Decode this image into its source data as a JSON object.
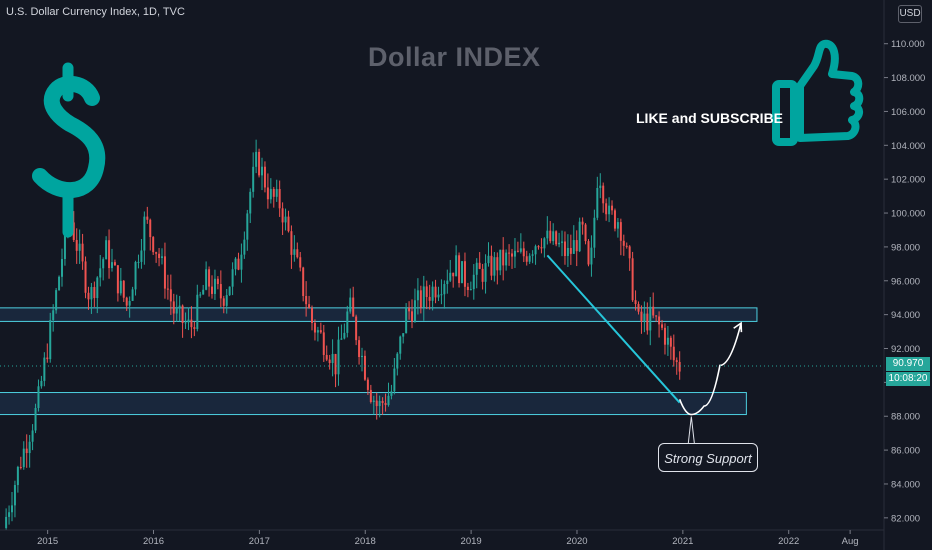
{
  "header": {
    "symbol_line": "U.S. Dollar Currency Index, 1D, TVC"
  },
  "currency_badge": "USD",
  "overlay": {
    "title": "Dollar INDEX",
    "promo": "LIKE and SUBSCRIBE",
    "dollar_sign": "$",
    "annotation": "Strong Support"
  },
  "price_tags": {
    "last_price": "90.970",
    "countdown": "10:08:20"
  },
  "colors": {
    "background": "#131722",
    "accent": "#00a59f",
    "zone": "#4dd0e1",
    "up": "#26a69a",
    "down": "#ef5350",
    "text": "#d1d4dc"
  },
  "icons": [
    "dollar-sign-icon",
    "thumbs-up-icon"
  ],
  "chart_data": {
    "type": "candlestick",
    "title": "Dollar INDEX",
    "ylim": [
      81.4,
      111.4
    ],
    "y_ticks": [
      "82.000",
      "84.000",
      "86.000",
      "88.000",
      "90.000",
      "92.000",
      "94.000",
      "96.000",
      "98.000",
      "100.000",
      "102.000",
      "104.000",
      "106.000",
      "108.000",
      "110.000"
    ],
    "y_tick_values": [
      82,
      84,
      86,
      88,
      90,
      92,
      94,
      96,
      98,
      100,
      102,
      104,
      106,
      108,
      110
    ],
    "x_ticks": [
      "2015",
      "2016",
      "2017",
      "2018",
      "2019",
      "2020",
      "2021",
      "2022",
      "Aug"
    ],
    "x_tick_values": [
      2015.0,
      2016.0,
      2017.0,
      2018.0,
      2019.0,
      2020.0,
      2021.0,
      2022.0,
      2022.58
    ],
    "xlim": [
      2014.55,
      2022.9
    ],
    "price_path": [
      [
        2014.58,
        81.4
      ],
      [
        2014.75,
        85.5
      ],
      [
        2014.9,
        88.5
      ],
      [
        2015.05,
        94.0
      ],
      [
        2015.2,
        100.0
      ],
      [
        2015.4,
        95.0
      ],
      [
        2015.55,
        97.8
      ],
      [
        2015.75,
        94.5
      ],
      [
        2015.92,
        99.6
      ],
      [
        2016.05,
        97.5
      ],
      [
        2016.2,
        94.0
      ],
      [
        2016.35,
        93.2
      ],
      [
        2016.5,
        96.0
      ],
      [
        2016.65,
        95.0
      ],
      [
        2016.8,
        97.0
      ],
      [
        2016.92,
        101.5
      ],
      [
        2016.98,
        103.2
      ],
      [
        2017.1,
        101.0
      ],
      [
        2017.2,
        100.5
      ],
      [
        2017.35,
        97.0
      ],
      [
        2017.5,
        93.5
      ],
      [
        2017.65,
        92.0
      ],
      [
        2017.72,
        91.0
      ],
      [
        2017.85,
        94.5
      ],
      [
        2017.95,
        92.0
      ],
      [
        2018.05,
        89.5
      ],
      [
        2018.12,
        88.5
      ],
      [
        2018.25,
        89.5
      ],
      [
        2018.38,
        94.0
      ],
      [
        2018.55,
        95.0
      ],
      [
        2018.72,
        96.0
      ],
      [
        2018.85,
        97.0
      ],
      [
        2018.95,
        96.0
      ],
      [
        2019.1,
        96.5
      ],
      [
        2019.3,
        97.2
      ],
      [
        2019.5,
        97.5
      ],
      [
        2019.65,
        98.6
      ],
      [
        2019.8,
        98.2
      ],
      [
        2019.92,
        97.5
      ],
      [
        2020.05,
        99.0
      ],
      [
        2020.12,
        96.0
      ],
      [
        2020.2,
        102.8
      ],
      [
        2020.3,
        99.8
      ],
      [
        2020.4,
        99.6
      ],
      [
        2020.5,
        96.5
      ],
      [
        2020.58,
        93.5
      ],
      [
        2020.7,
        93.8
      ],
      [
        2020.82,
        93.0
      ],
      [
        2020.92,
        91.2
      ],
      [
        2020.97,
        90.97
      ]
    ],
    "zones": [
      {
        "name": "resistance-zone",
        "from": 2014.3,
        "to": 2021.7,
        "low": 93.6,
        "high": 94.4
      },
      {
        "name": "support-zone",
        "from": 2014.15,
        "to": 2021.6,
        "low": 88.1,
        "high": 89.4
      }
    ],
    "trendline": {
      "from": [
        2019.72,
        97.5
      ],
      "to": [
        2020.97,
        88.8
      ]
    },
    "projection": [
      [
        2020.97,
        89.0
      ],
      [
        2021.08,
        88.1
      ],
      [
        2021.2,
        88.6
      ],
      [
        2021.35,
        91.0
      ],
      [
        2021.55,
        93.5
      ]
    ],
    "last_price": 90.97
  }
}
